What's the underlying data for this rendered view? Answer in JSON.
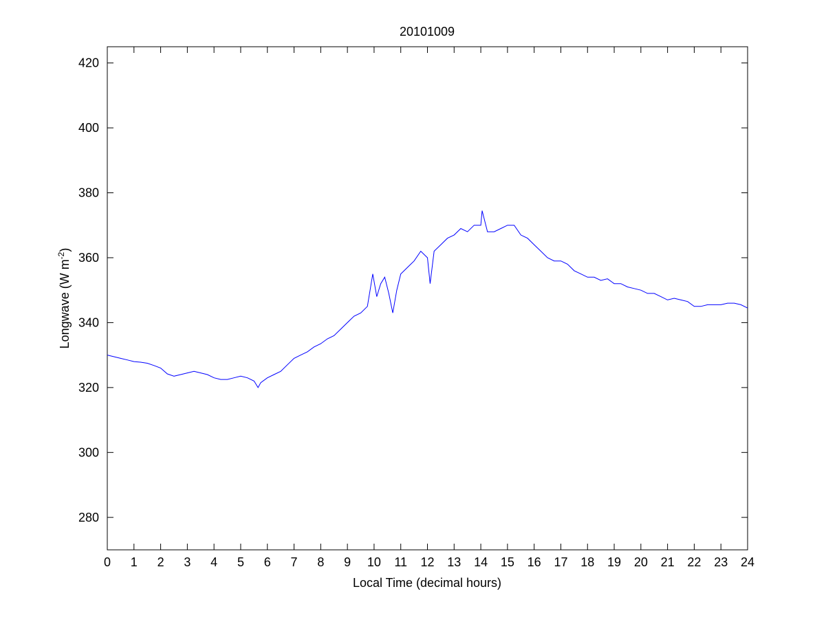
{
  "chart_data": {
    "type": "line",
    "title": "20101009",
    "xlabel": "Local Time (decimal hours)",
    "ylabel_main": "Longwave (W m",
    "ylabel_sup": "-2",
    "ylabel_close": ")",
    "xlim": [
      0,
      24
    ],
    "ylim": [
      270,
      425
    ],
    "xticks": [
      0,
      1,
      2,
      3,
      4,
      5,
      6,
      7,
      8,
      9,
      10,
      11,
      12,
      13,
      14,
      15,
      16,
      17,
      18,
      19,
      20,
      21,
      22,
      23,
      24
    ],
    "yticks": [
      280,
      300,
      320,
      340,
      360,
      380,
      400,
      420
    ],
    "grid": false,
    "line_color": "#0000ff",
    "series": [
      {
        "x": [
          0,
          0.25,
          0.5,
          0.75,
          1,
          1.25,
          1.5,
          1.75,
          2,
          2.25,
          2.5,
          2.75,
          3,
          3.25,
          3.5,
          3.75,
          4,
          4.25,
          4.5,
          4.75,
          5,
          5.25,
          5.5,
          5.65,
          5.75,
          6,
          6.25,
          6.5,
          6.75,
          7,
          7.25,
          7.5,
          7.75,
          8,
          8.25,
          8.5,
          8.75,
          9,
          9.25,
          9.5,
          9.75,
          9.95,
          10.1,
          10.25,
          10.4,
          10.55,
          10.7,
          10.85,
          11,
          11.25,
          11.5,
          11.75,
          12,
          12.1,
          12.25,
          12.5,
          12.75,
          13,
          13.25,
          13.5,
          13.75,
          14,
          14.05,
          14.25,
          14.5,
          14.75,
          15,
          15.25,
          15.5,
          15.75,
          16,
          16.25,
          16.5,
          16.75,
          17,
          17.25,
          17.5,
          17.75,
          18,
          18.25,
          18.5,
          18.75,
          19,
          19.25,
          19.5,
          19.75,
          20,
          20.25,
          20.5,
          20.75,
          21,
          21.25,
          21.5,
          21.75,
          22,
          22.25,
          22.5,
          22.75,
          23,
          23.25,
          23.5,
          23.75,
          24
        ],
        "y": [
          330,
          329.5,
          329,
          328.5,
          328,
          327.8,
          327.5,
          326.8,
          326,
          324.2,
          323.5,
          324,
          324.5,
          325,
          324.5,
          324,
          323,
          322.5,
          322.5,
          323,
          323.5,
          323,
          322,
          320,
          321.5,
          323,
          324,
          325,
          327,
          329,
          330,
          331,
          332.5,
          333.5,
          335,
          336,
          338,
          340,
          342,
          343,
          345,
          355,
          348,
          352,
          354,
          349,
          343,
          350,
          355,
          357,
          359,
          362,
          360,
          352,
          362,
          364,
          366,
          367,
          369,
          368,
          370,
          370,
          374.5,
          368,
          368,
          369,
          370,
          370,
          367,
          366,
          364,
          362,
          360,
          359,
          359,
          358,
          356,
          355,
          354,
          354,
          353,
          353.5,
          352,
          352,
          351,
          350.5,
          350,
          349,
          349,
          348,
          347,
          347.5,
          347,
          346.5,
          345,
          345,
          345.5,
          345.5,
          345.5,
          346,
          346,
          345.5,
          344.5
        ]
      }
    ]
  }
}
